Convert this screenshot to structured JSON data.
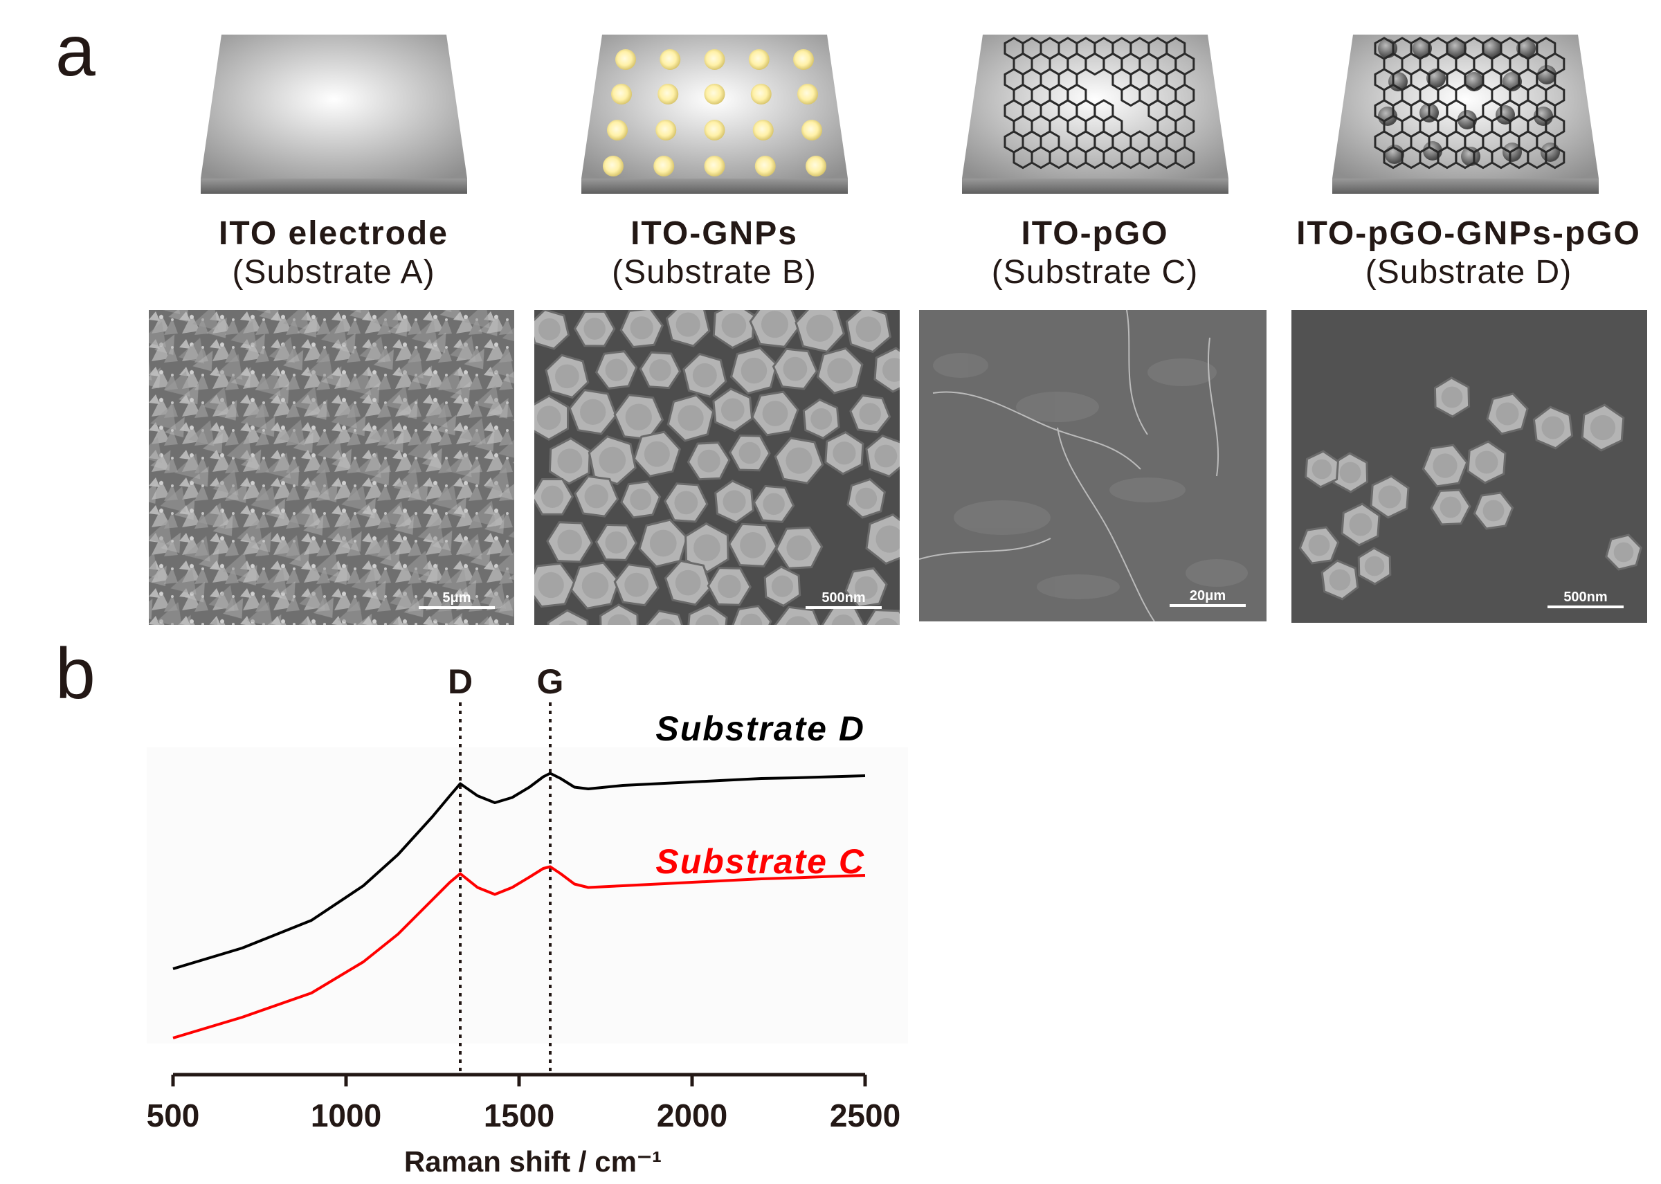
{
  "panels": {
    "a": "a",
    "b": "b"
  },
  "substrates": [
    {
      "name": "ITO electrode",
      "desc": "(Substrate A)",
      "scale": "5μm"
    },
    {
      "name": "ITO-GNPs",
      "desc": "(Substrate B)",
      "scale": "500nm"
    },
    {
      "name": "ITO-pGO",
      "desc": "(Substrate C)",
      "scale": "20μm"
    },
    {
      "name": "ITO-pGO-GNPs-pGO",
      "desc": "(Substrate D)",
      "scale": "500nm"
    }
  ],
  "chart_data": {
    "type": "line",
    "xlabel": "Raman shift / cm⁻¹",
    "ylabel": "",
    "xlim": [
      500,
      2500
    ],
    "xticks": [
      500,
      1000,
      1500,
      2000,
      2500
    ],
    "yaxis_shown": false,
    "reference_lines": [
      {
        "label": "D",
        "x": 1330
      },
      {
        "label": "G",
        "x": 1590
      }
    ],
    "series": [
      {
        "name": "Substrate D",
        "color": "#000000",
        "x": [
          500,
          700,
          900,
          1050,
          1150,
          1250,
          1300,
          1330,
          1380,
          1430,
          1480,
          1530,
          1570,
          1590,
          1620,
          1660,
          1700,
          1800,
          1900,
          2000,
          2100,
          2200,
          2300,
          2400,
          2500
        ],
        "y": [
          0.32,
          0.38,
          0.46,
          0.56,
          0.65,
          0.76,
          0.82,
          0.855,
          0.82,
          0.8,
          0.815,
          0.845,
          0.875,
          0.885,
          0.87,
          0.845,
          0.84,
          0.85,
          0.855,
          0.86,
          0.865,
          0.87,
          0.872,
          0.875,
          0.878
        ]
      },
      {
        "name": "Substrate C",
        "color": "#ff0000",
        "x": [
          500,
          700,
          900,
          1050,
          1150,
          1250,
          1300,
          1330,
          1380,
          1430,
          1480,
          1530,
          1570,
          1590,
          1620,
          1660,
          1700,
          1800,
          1900,
          2000,
          2100,
          2200,
          2300,
          2400,
          2500
        ],
        "y": [
          0.12,
          0.18,
          0.25,
          0.34,
          0.42,
          0.52,
          0.57,
          0.595,
          0.555,
          0.535,
          0.555,
          0.585,
          0.61,
          0.615,
          0.595,
          0.565,
          0.555,
          0.56,
          0.565,
          0.57,
          0.575,
          0.58,
          0.583,
          0.587,
          0.59
        ]
      }
    ]
  }
}
